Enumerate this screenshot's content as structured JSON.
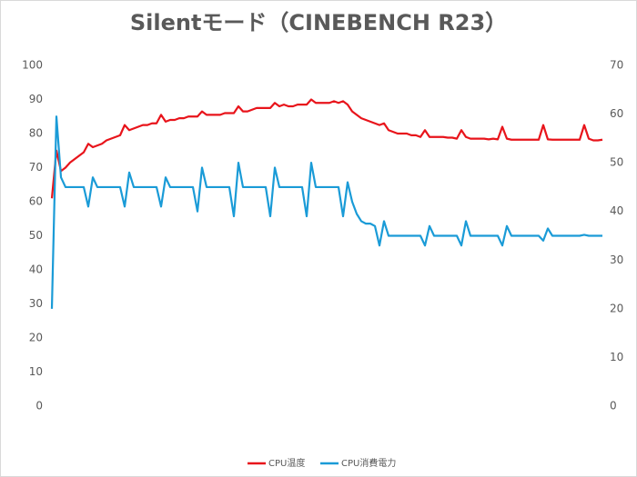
{
  "chart_data": {
    "type": "line",
    "title": "Silentモード（CINEBENCH R23）",
    "ylim": [
      0,
      100
    ],
    "yticks": [
      0,
      10,
      20,
      30,
      40,
      50,
      60,
      70,
      80,
      90,
      100
    ],
    "y2lim": [
      0,
      70
    ],
    "y2ticks": [
      0,
      10,
      20,
      30,
      40,
      50,
      60,
      70
    ],
    "grid": false,
    "legend": "bottom",
    "series": [
      {
        "name": "CPU温度",
        "color": "#e8141b",
        "values": [
          61,
          75,
          69,
          70,
          71.5,
          72.5,
          73.5,
          74.5,
          77,
          76,
          76.5,
          77,
          78,
          78.5,
          79,
          79.5,
          82.5,
          81,
          81.5,
          82,
          82.5,
          82.5,
          83,
          83,
          85.5,
          83.5,
          84,
          84,
          84.5,
          84.5,
          85,
          85,
          85,
          86.5,
          85.5,
          85.5,
          85.5,
          85.5,
          86,
          86,
          86,
          88,
          86.5,
          86.5,
          87,
          87.5,
          87.5,
          87.5,
          87.5,
          89,
          88,
          88.5,
          88,
          88,
          88.5,
          88.5,
          88.5,
          90,
          89,
          89,
          89,
          89,
          89.5,
          89,
          89.5,
          88.5,
          86.5,
          85.5,
          84.5,
          84,
          83.5,
          83,
          82.5,
          83,
          81,
          80.5,
          80,
          80,
          80,
          79.5,
          79.5,
          79,
          81,
          79,
          79,
          79,
          79,
          78.8,
          78.8,
          78.5,
          81,
          79,
          78.5,
          78.5,
          78.5,
          78.5,
          78.3,
          78.5,
          78.3,
          82,
          78.5,
          78.2,
          78.2,
          78.2,
          78.2,
          78.2,
          78.2,
          78.2,
          82.5,
          78.3,
          78.2,
          78.2,
          78.2,
          78.2,
          78.2,
          78.2,
          78.2,
          82.5,
          78.5,
          78,
          78,
          78.2
        ]
      },
      {
        "name": "CPU消費電力",
        "color": "#1a9bd7",
        "axis": "y2",
        "values": [
          20,
          59.5,
          47,
          45,
          45,
          45,
          45,
          45,
          41,
          47,
          45,
          45,
          45,
          45,
          45,
          45,
          41,
          48,
          45,
          45,
          45,
          45,
          45,
          45,
          41,
          47,
          45,
          45,
          45,
          45,
          45,
          45,
          40,
          49,
          45,
          45,
          45,
          45,
          45,
          45,
          39,
          50,
          45,
          45,
          45,
          45,
          45,
          45,
          39,
          49,
          45,
          45,
          45,
          45,
          45,
          45,
          39,
          50,
          45,
          45,
          45,
          45,
          45,
          45,
          39,
          46,
          42,
          39.5,
          38,
          37.5,
          37.5,
          37,
          33,
          38,
          35,
          35,
          35,
          35,
          35,
          35,
          35,
          35,
          33,
          37,
          35,
          35,
          35,
          35,
          35,
          35,
          33,
          38,
          35,
          35,
          35,
          35,
          35,
          35,
          35,
          33,
          37,
          35,
          35,
          35,
          35,
          35,
          35,
          35,
          34,
          36.5,
          35,
          35,
          35,
          35,
          35,
          35,
          35,
          35.2,
          35,
          35,
          35,
          35
        ]
      }
    ]
  }
}
